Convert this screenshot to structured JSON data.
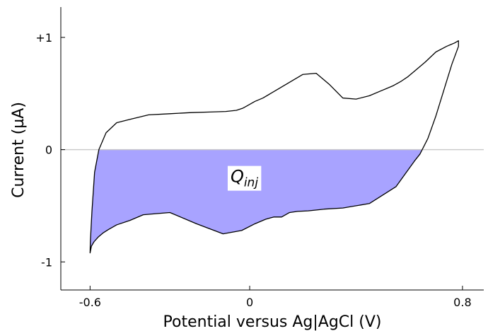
{
  "chart_data": {
    "type": "line",
    "title": "",
    "xlabel": "Potential versus Ag|AgCl (V)",
    "ylabel": "Current (µA)",
    "xlim": [
      -0.71,
      0.88
    ],
    "ylim": [
      -1.25,
      1.27
    ],
    "x_ticks": [
      {
        "value": -0.6,
        "label": "-0.6"
      },
      {
        "value": 0,
        "label": "0"
      },
      {
        "value": 0.8,
        "label": "0.8"
      }
    ],
    "y_ticks": [
      {
        "value": 1,
        "label": "+1"
      },
      {
        "value": 0,
        "label": "0"
      },
      {
        "value": -1,
        "label": "-1"
      }
    ],
    "grid": false,
    "zero_line_color": "#c8c8c8",
    "line_color": "#000000",
    "fill_color": "#a8a3ff",
    "annotation": {
      "base": "Q",
      "subscript": "inj",
      "x": -0.02,
      "y": -0.29
    },
    "series": [
      {
        "x": [
          -0.6,
          -0.599,
          -0.593,
          -0.583,
          -0.567,
          -0.54,
          -0.5,
          -0.45,
          -0.38,
          -0.3,
          -0.22,
          -0.15,
          -0.09,
          -0.05,
          -0.025,
          -0.01,
          0.02,
          0.05,
          0.1,
          0.15,
          0.2,
          0.25,
          0.3,
          0.35,
          0.4,
          0.45,
          0.5,
          0.54,
          0.57,
          0.595,
          0.62,
          0.66,
          0.7,
          0.74,
          0.77,
          0.785,
          0.785,
          0.76,
          0.73,
          0.7,
          0.67,
          0.64,
          0.62,
          0.55,
          0.45,
          0.35,
          0.28,
          0.22,
          0.18,
          0.15,
          0.12,
          0.09,
          0.06,
          0.02,
          -0.03,
          -0.1,
          -0.2,
          -0.3,
          -0.4,
          -0.45,
          -0.5,
          -0.53,
          -0.55,
          -0.57,
          -0.585,
          -0.595,
          -0.6
        ],
        "y": [
          -0.92,
          -0.82,
          -0.55,
          -0.2,
          0.0,
          0.15,
          0.24,
          0.27,
          0.31,
          0.32,
          0.33,
          0.335,
          0.34,
          0.35,
          0.37,
          0.39,
          0.43,
          0.46,
          0.53,
          0.6,
          0.67,
          0.68,
          0.58,
          0.46,
          0.45,
          0.48,
          0.53,
          0.57,
          0.61,
          0.65,
          0.7,
          0.78,
          0.87,
          0.92,
          0.95,
          0.97,
          0.92,
          0.76,
          0.53,
          0.3,
          0.1,
          -0.04,
          -0.1,
          -0.33,
          -0.48,
          -0.52,
          -0.53,
          -0.545,
          -0.55,
          -0.56,
          -0.6,
          -0.6,
          -0.62,
          -0.66,
          -0.72,
          -0.75,
          -0.66,
          -0.56,
          -0.58,
          -0.63,
          -0.67,
          -0.71,
          -0.74,
          -0.78,
          -0.82,
          -0.86,
          -0.92
        ]
      }
    ]
  }
}
